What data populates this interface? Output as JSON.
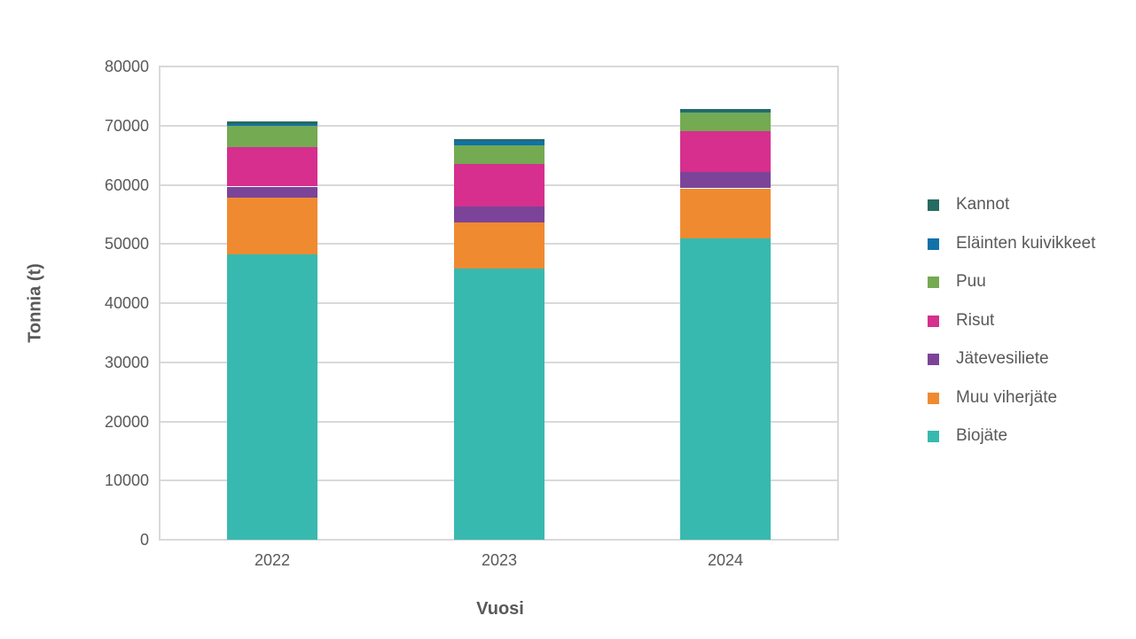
{
  "chart": {
    "y_axis_title": "Tonnia (t)",
    "x_axis_title": "Vuosi"
  },
  "chart_data": {
    "type": "bar",
    "stacked": true,
    "title": "",
    "xlabel": "Vuosi",
    "ylabel": "Tonnia (t)",
    "categories": [
      "2022",
      "2023",
      "2024"
    ],
    "series": [
      {
        "name": "Biojäte",
        "color": "#38B9B0",
        "values": [
          48300,
          45900,
          50900
        ]
      },
      {
        "name": "Muu viherjäte",
        "color": "#F08A30",
        "values": [
          9600,
          7800,
          8500
        ]
      },
      {
        "name": "Jätevesiliete",
        "color": "#7C4499",
        "values": [
          1800,
          2700,
          2700
        ]
      },
      {
        "name": "Risut",
        "color": "#D62F8E",
        "values": [
          6600,
          7100,
          6900
        ]
      },
      {
        "name": "Puu",
        "color": "#74AA51",
        "values": [
          3600,
          3200,
          3300
        ]
      },
      {
        "name": "Eläinten kuivikkeet",
        "color": "#1171A9",
        "values": [
          350,
          700,
          100
        ]
      },
      {
        "name": "Kannot",
        "color": "#266B60",
        "values": [
          500,
          250,
          400
        ]
      }
    ],
    "totals": [
      70750,
      67650,
      72800
    ],
    "ylim": [
      0,
      80000
    ],
    "ytick_step": 10000,
    "ytick_labels": [
      "0",
      "10000",
      "20000",
      "30000",
      "40000",
      "50000",
      "60000",
      "70000",
      "80000"
    ],
    "grid": true,
    "legend_position": "right",
    "legend_order": [
      "Kannot",
      "Eläinten kuivikkeet",
      "Puu",
      "Risut",
      "Jätevesiliete",
      "Muu viherjäte",
      "Biojäte"
    ],
    "colors": {
      "text": "#595959",
      "gridline": "#D9D9D9",
      "background": "#FFFFFF"
    }
  }
}
